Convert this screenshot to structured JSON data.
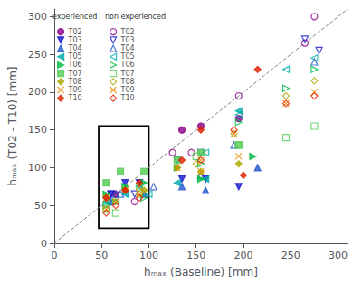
{
  "chart_data": {
    "type": "scatter",
    "xlabel": "hₘₐₓ (Baseline) [mm]",
    "ylabel": "hₘₐₓ (T02 - T10) [mm]",
    "xlim": [
      0,
      310
    ],
    "ylim": [
      0,
      310
    ],
    "xticks": [
      0,
      50,
      100,
      150,
      200,
      250,
      300
    ],
    "yticks": [
      0,
      50,
      100,
      150,
      200,
      250,
      300
    ],
    "grid": false,
    "legend": "upper left",
    "legend_headers": [
      "experienced",
      "non experienced"
    ],
    "diagonal": {
      "x": [
        0,
        310
      ],
      "y": [
        0,
        310
      ],
      "color": "gray",
      "line_style": "dashed"
    },
    "rect": {
      "x": 47,
      "y": 20,
      "width": 53,
      "height": 135,
      "color": "black"
    },
    "series": [
      {
        "name": "T02",
        "color": "#8B008B",
        "marker": "circle",
        "experienced": {
          "x": [
            155,
            135,
            65,
            195
          ],
          "y": [
            155,
            150,
            65,
            165
          ]
        },
        "non_experienced": {
          "x": [
            275,
            265,
            195,
            85,
            145,
            125
          ],
          "y": [
            300,
            265,
            195,
            55,
            120,
            120
          ]
        }
      },
      {
        "name": "T03",
        "color": "#1515CC",
        "marker": "triangle_down",
        "experienced": {
          "x": [
            60,
            75,
            90,
            135,
            160,
            195
          ],
          "y": [
            65,
            80,
            80,
            85,
            85,
            75
          ]
        },
        "non_experienced": {
          "x": [
            265,
            280,
            155,
            130,
            85,
            60
          ],
          "y": [
            270,
            255,
            120,
            110,
            65,
            65
          ]
        }
      },
      {
        "name": "T04",
        "color": "#2255CC",
        "marker": "triangle_up",
        "experienced": {
          "x": [
            60,
            75,
            95,
            135,
            160,
            215
          ],
          "y": [
            55,
            70,
            65,
            75,
            70,
            100
          ]
        },
        "non_experienced": {
          "x": [
            275,
            190,
            155,
            105,
            70,
            65
          ],
          "y": [
            240,
            130,
            90,
            75,
            65,
            65
          ]
        }
      },
      {
        "name": "T05",
        "color": "#00AAAA",
        "marker": "triangle_left",
        "experienced": {
          "x": [
            55,
            75,
            90,
            130,
            160,
            195
          ],
          "y": [
            55,
            65,
            75,
            80,
            85,
            175
          ]
        },
        "non_experienced": {
          "x": [
            275,
            245,
            195,
            160,
            100,
            65,
            55
          ],
          "y": [
            245,
            230,
            170,
            120,
            65,
            55,
            50
          ]
        }
      },
      {
        "name": "T06",
        "color": "#00BB44",
        "marker": "triangle_right",
        "experienced": {
          "x": [
            55,
            75,
            95,
            130,
            155,
            210
          ],
          "y": [
            65,
            75,
            80,
            100,
            85,
            115
          ]
        },
        "non_experienced": {
          "x": [
            275,
            245,
            195,
            155,
            95,
            65,
            55
          ],
          "y": [
            230,
            205,
            160,
            105,
            60,
            55,
            50
          ]
        }
      },
      {
        "name": "T07",
        "color": "#55CC55",
        "marker": "square",
        "experienced": {
          "x": [
            55,
            70,
            95,
            130,
            155,
            195
          ],
          "y": [
            80,
            95,
            95,
            110,
            120,
            130
          ]
        },
        "non_experienced": {
          "x": [
            275,
            245,
            195,
            150,
            90,
            65,
            55
          ],
          "y": [
            155,
            140,
            130,
            115,
            75,
            40,
            45
          ]
        }
      },
      {
        "name": "T08",
        "color": "#AAAA00",
        "marker": "diamond",
        "experienced": {
          "x": [
            55,
            75,
            95,
            130,
            155,
            195
          ],
          "y": [
            60,
            70,
            70,
            100,
            95,
            105
          ]
        },
        "non_experienced": {
          "x": [
            275,
            245,
            190,
            150,
            90,
            65,
            55
          ],
          "y": [
            215,
            195,
            145,
            105,
            65,
            55,
            45
          ]
        }
      },
      {
        "name": "T09",
        "color": "#EE8800",
        "marker": "x",
        "experienced": {
          "x": [
            55,
            75,
            90,
            130,
            155,
            195
          ],
          "y": [
            60,
            70,
            75,
            100,
            95,
            115
          ]
        },
        "non_experienced": {
          "x": [
            275,
            245,
            190,
            155,
            90,
            65,
            55
          ],
          "y": [
            200,
            185,
            145,
            110,
            65,
            55,
            45
          ]
        }
      },
      {
        "name": "T10",
        "color": "#DD2200",
        "marker": "diamond",
        "experienced": {
          "x": [
            55,
            75,
            90,
            135,
            155,
            200,
            215
          ],
          "y": [
            60,
            70,
            80,
            110,
            150,
            90,
            230
          ]
        },
        "non_experienced": {
          "x": [
            275,
            245,
            190,
            155,
            90,
            65,
            55
          ],
          "y": [
            195,
            185,
            150,
            110,
            60,
            50,
            40
          ]
        }
      }
    ]
  }
}
